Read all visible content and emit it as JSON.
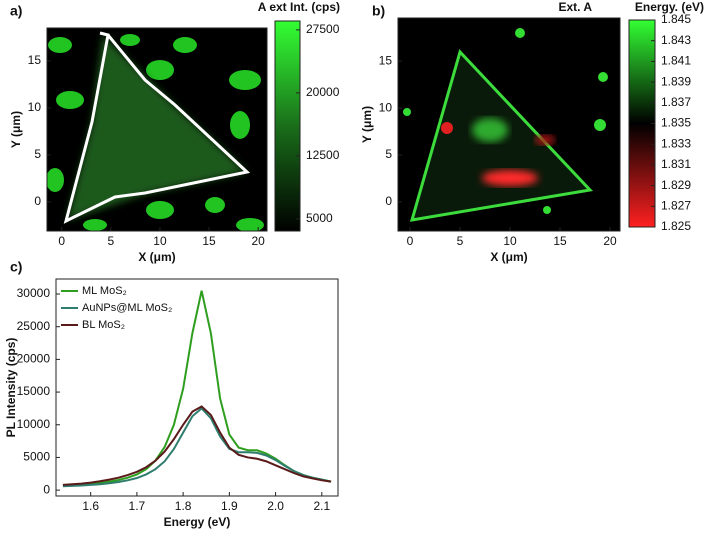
{
  "chart_data": [
    {
      "type": "map",
      "panel": "a)",
      "title": "A ext Int. (cps)",
      "x_label": "X (μm)",
      "y_label": "Y (μm)",
      "xlim": [
        -1.5,
        20.9
      ],
      "ylim": [
        -3.1,
        18.5
      ],
      "xticks": [
        0,
        5,
        10,
        15,
        20
      ],
      "yticks": [
        0,
        5,
        10,
        15
      ],
      "colorbar_lim": [
        3550,
        28560
      ],
      "colorbar_ticks": [
        5000,
        12500,
        20000,
        27500
      ],
      "colormap": [
        "#000000",
        "#1a6e1a",
        "#33ff33"
      ]
    },
    {
      "type": "map",
      "panel": "b)",
      "title": "Ext. A",
      "colorbar_title": "Energy. (eV)",
      "x_label": "X (μm)",
      "y_label": "Y (μm)",
      "xlim": [
        -1.2,
        21
      ],
      "ylim": [
        -3.1,
        19.6
      ],
      "xticks": [
        0,
        5,
        10,
        15,
        20
      ],
      "yticks": [
        0,
        5,
        10,
        15
      ],
      "colorbar_lim": [
        1.825,
        1.845
      ],
      "colorbar_ticks": [
        1.825,
        1.827,
        1.829,
        1.831,
        1.833,
        1.835,
        1.837,
        1.839,
        1.841,
        1.843,
        1.845
      ],
      "colormap": [
        "#ff2020",
        "#000000",
        "#33ff33"
      ]
    },
    {
      "type": "line",
      "panel": "c)",
      "x_label": "Energy (eV)",
      "y_label": "PL Intensity (cps)",
      "xlim": [
        1.525,
        2.135
      ],
      "ylim": [
        -900,
        32300
      ],
      "xticks": [
        1.6,
        1.7,
        1.8,
        1.9,
        {
          "value": 2,
          "label": "2.0"
        },
        2.1
      ],
      "yticks": [
        0,
        5000,
        10000,
        15000,
        20000,
        25000,
        30000
      ],
      "x": [
        1.54,
        1.56,
        1.58,
        1.6,
        1.62,
        1.64,
        1.66,
        1.68,
        1.7,
        1.72,
        1.74,
        1.76,
        1.78,
        1.8,
        1.82,
        1.84,
        1.86,
        1.88,
        1.9,
        1.92,
        1.94,
        1.96,
        1.98,
        2.0,
        2.02,
        2.04,
        2.06,
        2.08,
        2.1,
        2.12
      ],
      "series": [
        {
          "name": "ML MoS₂",
          "color": "#2e9e1e",
          "values": [
            700,
            750,
            850,
            950,
            1100,
            1300,
            1550,
            1900,
            2400,
            3200,
            4500,
            6600,
            10000,
            15500,
            24000,
            30500,
            24000,
            14000,
            8500,
            6500,
            6100,
            6100,
            5600,
            4800,
            3800,
            2900,
            2300,
            1900,
            1600,
            1300
          ]
        },
        {
          "name": "AuNPs@ML MoS₂",
          "color": "#2e7d6e",
          "values": [
            600,
            650,
            700,
            800,
            900,
            1050,
            1250,
            1500,
            1850,
            2400,
            3200,
            4400,
            6300,
            8800,
            11300,
            12500,
            11000,
            8200,
            6300,
            5800,
            5800,
            5700,
            5300,
            4600,
            3700,
            2900,
            2300,
            1900,
            1600,
            1300
          ]
        },
        {
          "name": "BL MoS₂",
          "color": "#5a1a1a",
          "values": [
            800,
            900,
            1000,
            1150,
            1350,
            1600,
            1900,
            2300,
            2800,
            3500,
            4500,
            5900,
            7800,
            10000,
            12000,
            12800,
            11500,
            8800,
            6500,
            5400,
            5000,
            4800,
            4400,
            3800,
            3200,
            2600,
            2100,
            1800,
            1500,
            1300
          ]
        }
      ]
    }
  ]
}
